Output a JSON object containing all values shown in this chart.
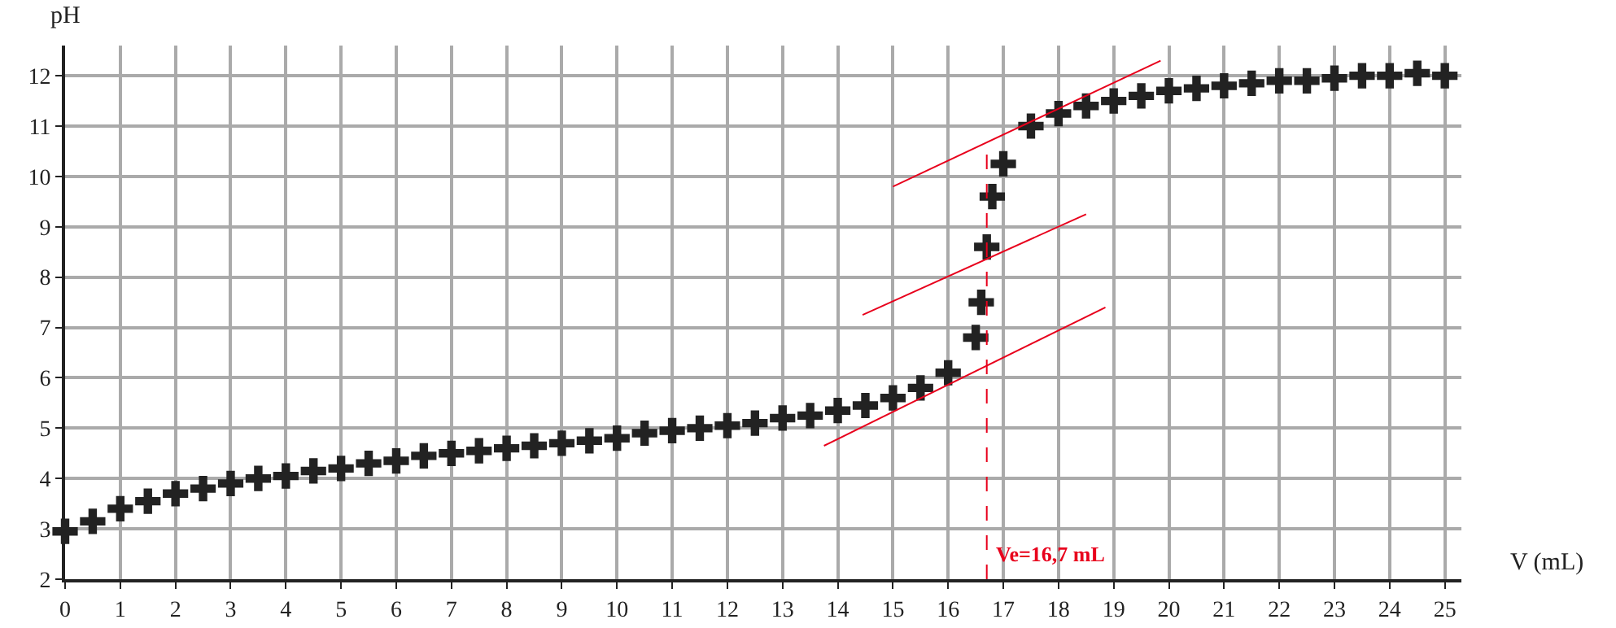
{
  "chart_data": {
    "type": "scatter",
    "xlabel": "V (mL)",
    "ylabel": "pH",
    "grid": true,
    "xlim": [
      0,
      25.3
    ],
    "ylim": [
      2,
      12.6
    ],
    "xticks": [
      0,
      1,
      2,
      3,
      4,
      5,
      6,
      7,
      8,
      9,
      10,
      11,
      12,
      13,
      14,
      15,
      16,
      17,
      18,
      19,
      20,
      21,
      22,
      23,
      24,
      25
    ],
    "yticks": [
      2,
      3,
      4,
      5,
      6,
      7,
      8,
      9,
      10,
      11,
      12
    ],
    "series": [
      {
        "marker": "cross",
        "color": "#222222",
        "x": [
          0,
          0.5,
          1,
          1.5,
          2,
          2.5,
          3,
          3.5,
          4,
          4.5,
          5,
          5.5,
          6,
          6.5,
          7,
          7.5,
          8,
          8.5,
          9,
          9.5,
          10,
          10.5,
          11,
          11.5,
          12,
          12.5,
          13,
          13.5,
          14,
          14.5,
          15,
          15.5,
          16,
          16.5,
          16.6,
          16.7,
          16.8,
          17,
          17.5,
          18,
          18.5,
          19,
          19.5,
          20,
          20.5,
          21,
          21.5,
          22,
          22.5,
          23,
          23.5,
          24,
          24.5,
          25
        ],
        "values": [
          2.95,
          3.15,
          3.4,
          3.55,
          3.7,
          3.8,
          3.9,
          4.0,
          4.05,
          4.15,
          4.2,
          4.3,
          4.35,
          4.45,
          4.5,
          4.55,
          4.6,
          4.65,
          4.7,
          4.75,
          4.8,
          4.9,
          4.95,
          5.0,
          5.05,
          5.1,
          5.2,
          5.25,
          5.35,
          5.45,
          5.6,
          5.8,
          6.1,
          6.8,
          7.5,
          8.6,
          9.6,
          10.25,
          11.0,
          11.25,
          11.4,
          11.5,
          11.6,
          11.7,
          11.75,
          11.8,
          11.85,
          11.9,
          11.9,
          11.95,
          12.0,
          12.0,
          12.05,
          12.0
        ]
      },
      {
        "type": "line",
        "color": "#e8001c",
        "x": [
          15,
          19.85
        ],
        "values": [
          9.8,
          12.3
        ]
      },
      {
        "type": "line",
        "color": "#e8001c",
        "x": [
          14.45,
          18.5
        ],
        "values": [
          7.25,
          9.25
        ]
      },
      {
        "type": "line",
        "color": "#e8001c",
        "x": [
          13.75,
          18.85
        ],
        "values": [
          4.65,
          7.4
        ]
      }
    ],
    "ref_lines": [
      {
        "axis": "x",
        "value": 16.7,
        "label": "Ve=16,7 mL",
        "color": "#e8001c",
        "line_style": "dashed"
      }
    ]
  }
}
